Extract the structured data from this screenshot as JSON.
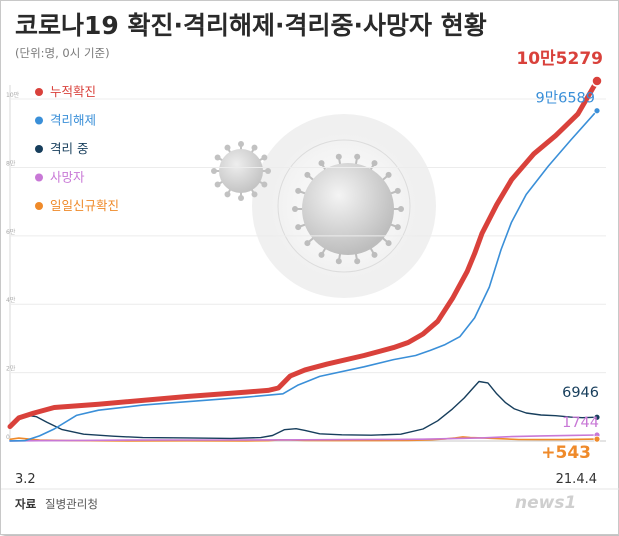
{
  "header": {
    "title": "코로나19 확진·격리해제·격리중·사망자 현황",
    "subtitle": "(단위:명, 0시 기준)"
  },
  "colors": {
    "cumulative": "#d9413b",
    "released": "#3a8fd8",
    "isolating": "#173e5c",
    "deaths": "#c878d6",
    "daily": "#ef8a2a"
  },
  "legend": [
    {
      "key": "cumulative",
      "label": "누적확진"
    },
    {
      "key": "released",
      "label": "격리해제"
    },
    {
      "key": "isolating",
      "label": "격리 중"
    },
    {
      "key": "deaths",
      "label": "사망자"
    },
    {
      "key": "daily",
      "label": "일일신규확진"
    }
  ],
  "chart_data": {
    "type": "line",
    "title": "코로나19 확진·격리해제·격리중·사망자 현황",
    "unit": "명",
    "x_domain": [
      0,
      398
    ],
    "ylim": [
      0,
      105279
    ],
    "y_ticks": [
      {
        "value": 0,
        "label": "0"
      },
      {
        "value": 20000,
        "label": "2만"
      },
      {
        "value": 40000,
        "label": "4만"
      },
      {
        "value": 60000,
        "label": "6만"
      },
      {
        "value": 80000,
        "label": "8만"
      },
      {
        "value": 100000,
        "label": "10만"
      }
    ],
    "x_labels": [
      {
        "day": 0,
        "label": "3.2"
      },
      {
        "day": 398,
        "label": "21.4.4"
      }
    ],
    "series": [
      {
        "key": "cumulative",
        "name": "누적확진",
        "end_label": "10만5279",
        "points": [
          [
            0,
            4212
          ],
          [
            6,
            6767
          ],
          [
            16,
            8162
          ],
          [
            30,
            9786
          ],
          [
            60,
            10772
          ],
          [
            120,
            13000
          ],
          [
            160,
            14300
          ],
          [
            175,
            14800
          ],
          [
            182,
            15500
          ],
          [
            190,
            19000
          ],
          [
            200,
            20800
          ],
          [
            215,
            22500
          ],
          [
            240,
            25000
          ],
          [
            260,
            27300
          ],
          [
            270,
            28800
          ],
          [
            280,
            31300
          ],
          [
            290,
            35000
          ],
          [
            300,
            41700
          ],
          [
            310,
            49600
          ],
          [
            315,
            54800
          ],
          [
            320,
            60700
          ],
          [
            330,
            69100
          ],
          [
            340,
            76400
          ],
          [
            355,
            83900
          ],
          [
            370,
            89300
          ],
          [
            385,
            95600
          ],
          [
            398,
            105279
          ]
        ]
      },
      {
        "key": "released",
        "name": "격리해제",
        "end_label": "9만6589",
        "points": [
          [
            0,
            30
          ],
          [
            10,
            100
          ],
          [
            20,
            1500
          ],
          [
            30,
            3500
          ],
          [
            45,
            7500
          ],
          [
            60,
            9000
          ],
          [
            90,
            10500
          ],
          [
            120,
            11500
          ],
          [
            160,
            12800
          ],
          [
            185,
            13800
          ],
          [
            195,
            16300
          ],
          [
            210,
            18900
          ],
          [
            240,
            21700
          ],
          [
            260,
            23800
          ],
          [
            275,
            25000
          ],
          [
            285,
            26500
          ],
          [
            295,
            28200
          ],
          [
            305,
            30500
          ],
          [
            315,
            36000
          ],
          [
            325,
            45000
          ],
          [
            333,
            56000
          ],
          [
            340,
            64000
          ],
          [
            350,
            72100
          ],
          [
            365,
            80400
          ],
          [
            380,
            87900
          ],
          [
            398,
            96589
          ]
        ]
      },
      {
        "key": "isolating",
        "name": "격리 중",
        "end_label": "6946",
        "points": [
          [
            0,
            4200
          ],
          [
            6,
            6700
          ],
          [
            12,
            7500
          ],
          [
            18,
            7100
          ],
          [
            25,
            5500
          ],
          [
            35,
            3400
          ],
          [
            50,
            2000
          ],
          [
            70,
            1400
          ],
          [
            90,
            1000
          ],
          [
            120,
            900
          ],
          [
            150,
            750
          ],
          [
            170,
            1000
          ],
          [
            178,
            1600
          ],
          [
            186,
            3300
          ],
          [
            194,
            3600
          ],
          [
            200,
            3100
          ],
          [
            210,
            2100
          ],
          [
            225,
            1800
          ],
          [
            245,
            1700
          ],
          [
            265,
            2000
          ],
          [
            280,
            3500
          ],
          [
            290,
            5900
          ],
          [
            300,
            9400
          ],
          [
            308,
            12600
          ],
          [
            314,
            15500
          ],
          [
            318,
            17400
          ],
          [
            324,
            17000
          ],
          [
            330,
            13800
          ],
          [
            336,
            11200
          ],
          [
            342,
            9400
          ],
          [
            350,
            8200
          ],
          [
            360,
            7600
          ],
          [
            370,
            7400
          ],
          [
            380,
            7000
          ],
          [
            388,
            6800
          ],
          [
            398,
            6946
          ]
        ]
      },
      {
        "key": "deaths",
        "name": "사망자",
        "end_label": "1744",
        "points": [
          [
            0,
            20
          ],
          [
            20,
            100
          ],
          [
            50,
            180
          ],
          [
            80,
            250
          ],
          [
            110,
            280
          ],
          [
            140,
            300
          ],
          [
            170,
            320
          ],
          [
            200,
            360
          ],
          [
            230,
            420
          ],
          [
            260,
            480
          ],
          [
            280,
            540
          ],
          [
            300,
            700
          ],
          [
            320,
            900
          ],
          [
            340,
            1300
          ],
          [
            360,
            1500
          ],
          [
            380,
            1650
          ],
          [
            398,
            1744
          ]
        ]
      },
      {
        "key": "daily",
        "name": "일일신규확진",
        "end_label": "+543",
        "points": [
          [
            0,
            500
          ],
          [
            6,
            850
          ],
          [
            12,
            600
          ],
          [
            20,
            300
          ],
          [
            40,
            110
          ],
          [
            80,
            40
          ],
          [
            120,
            50
          ],
          [
            160,
            40
          ],
          [
            175,
            100
          ],
          [
            183,
            340
          ],
          [
            190,
            300
          ],
          [
            200,
            150
          ],
          [
            220,
            120
          ],
          [
            250,
            110
          ],
          [
            270,
            190
          ],
          [
            285,
            350
          ],
          [
            295,
            600
          ],
          [
            302,
            900
          ],
          [
            307,
            1200
          ],
          [
            312,
            1000
          ],
          [
            320,
            900
          ],
          [
            330,
            700
          ],
          [
            345,
            450
          ],
          [
            360,
            400
          ],
          [
            375,
            420
          ],
          [
            385,
            500
          ],
          [
            398,
            543
          ]
        ]
      }
    ]
  },
  "footer": {
    "source_prefix": "자료",
    "source_name": "질병관리청",
    "logo": "news1"
  }
}
